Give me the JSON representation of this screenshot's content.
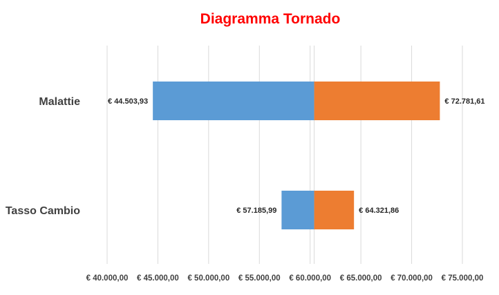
{
  "chart_data": {
    "type": "bar",
    "orientation": "horizontal",
    "variant": "tornado",
    "title": "Diagramma Tornado",
    "title_color": "#ff0000",
    "base_value": 60400,
    "categories": [
      "Malattie",
      "Tasso Cambio"
    ],
    "series": [
      {
        "values": [
          44503.93,
          57185.99
        ],
        "labels": [
          "€ 44.503,93",
          "€ 57.185,99"
        ],
        "color": "#5b9bd5"
      },
      {
        "values": [
          72781.61,
          64321.86
        ],
        "labels": [
          "€ 72.781,61",
          "€ 64.321,86"
        ],
        "color": "#ed7d31"
      }
    ],
    "xlim": [
      40000,
      75000
    ],
    "xticks": [
      40000,
      45000,
      50000,
      55000,
      60000,
      65000,
      70000,
      75000
    ],
    "xtick_labels": [
      "€ 40.000,00",
      "€ 45.000,00",
      "€ 50.000,00",
      "€ 55.000,00",
      "€ 60.000,00",
      "€ 65.000,00",
      "€ 70.000,00",
      "€ 75.000,00"
    ],
    "grid": true,
    "legend": "none"
  }
}
